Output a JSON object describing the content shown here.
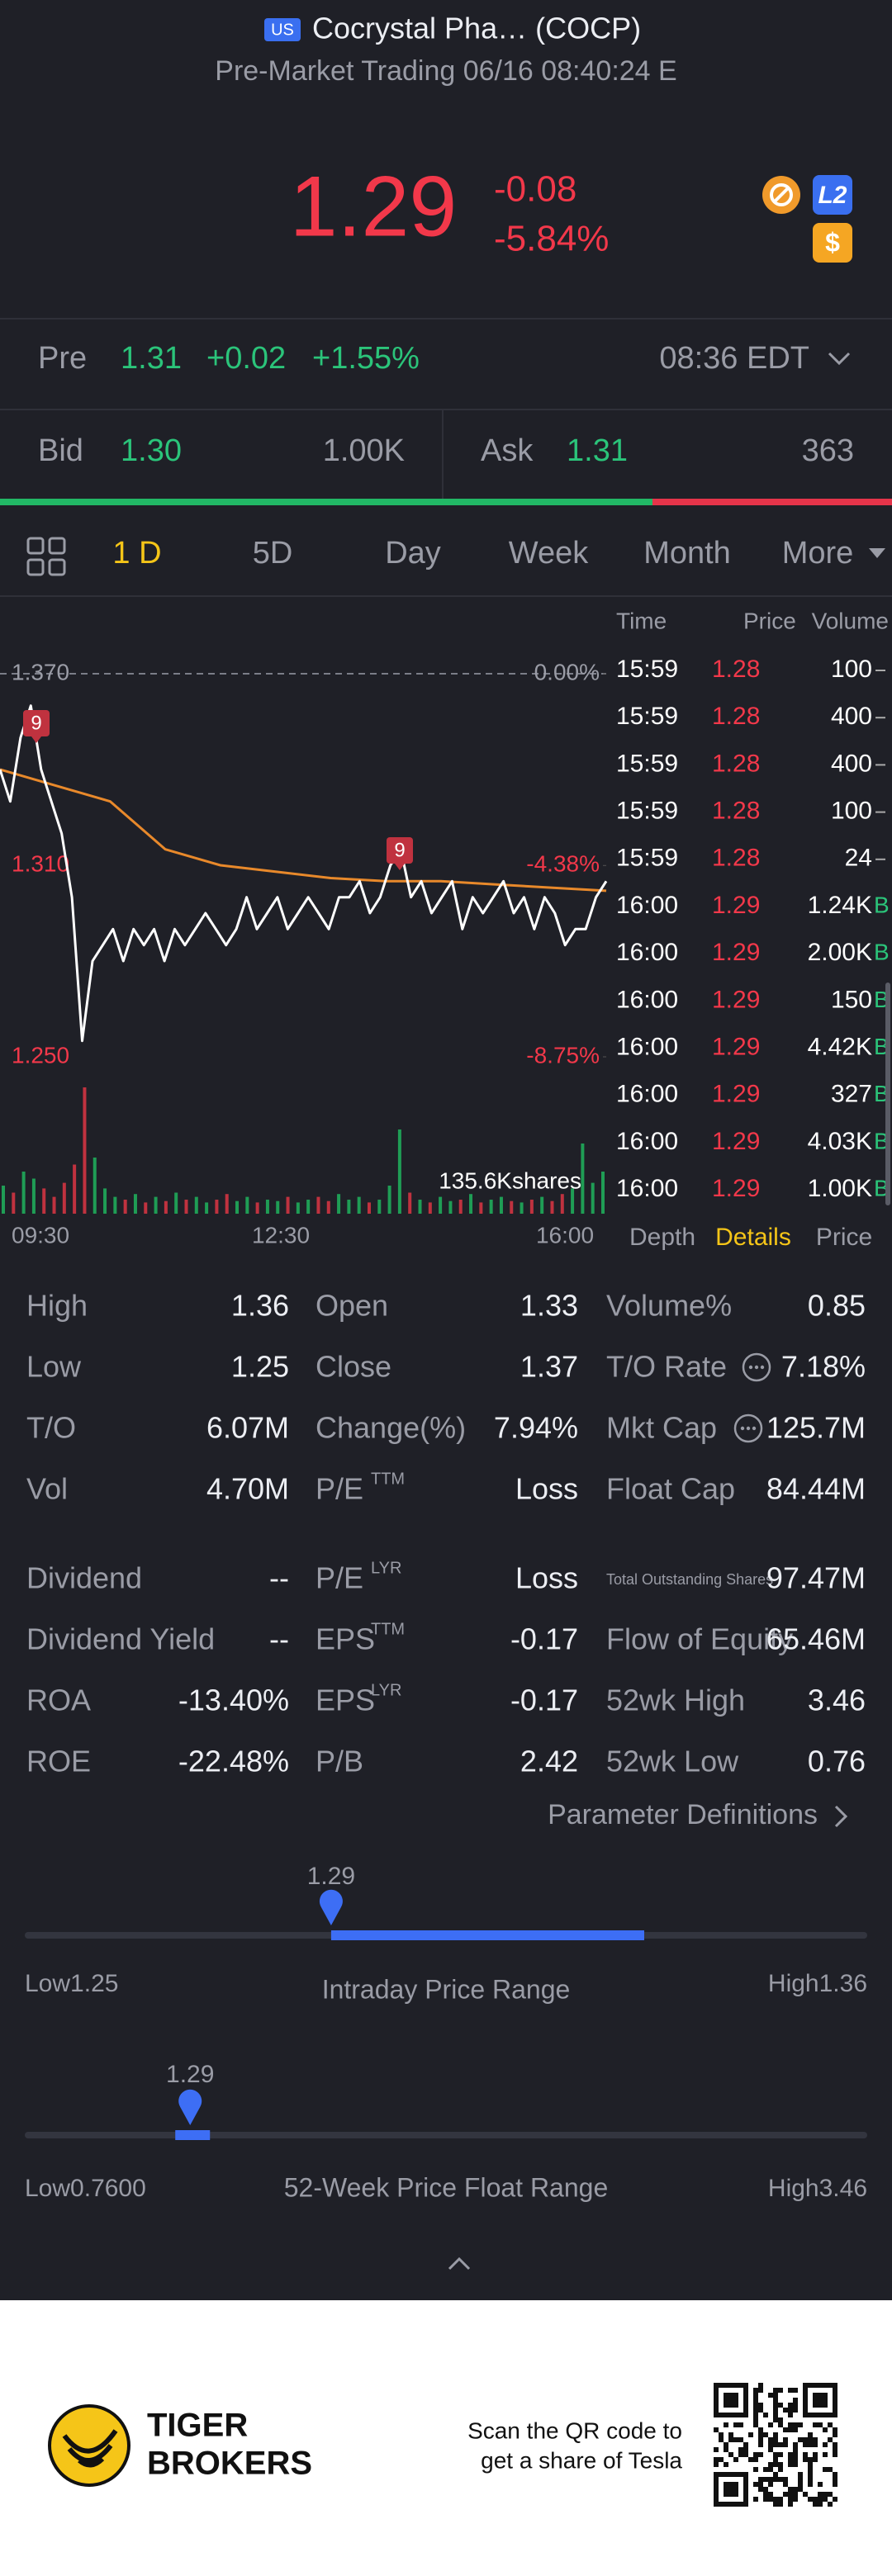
{
  "header": {
    "flag": "US",
    "name": "Cocrystal Pha… (COCP)",
    "subtitle": "Pre-Market Trading 06/16 08:40:24 E",
    "icons": [
      "L2",
      "$"
    ]
  },
  "quote": {
    "price": "1.29",
    "change": "-0.08",
    "change_pct": "-5.84%"
  },
  "pre": {
    "label": "Pre",
    "price": "1.31",
    "change": "+0.02",
    "change_pct": "+1.55%",
    "time": "08:36 EDT"
  },
  "bid": {
    "label": "Bid",
    "price": "1.30",
    "size": "1.00K"
  },
  "ask": {
    "label": "Ask",
    "price": "1.31",
    "size": "363"
  },
  "tabs": [
    "1 D",
    "5D",
    "Day",
    "Week",
    "Month",
    "More"
  ],
  "chart": {
    "type": "line",
    "ylim": [
      1.25,
      1.37
    ],
    "yticks": [
      {
        "value": 1.37,
        "label": "1.370"
      },
      {
        "value": 1.31,
        "label": "1.310"
      },
      {
        "value": 1.25,
        "label": "1.250"
      }
    ],
    "y2lim": [
      -8.75,
      0
    ],
    "y2ticks": [
      {
        "value": 0,
        "label": "0.00%"
      },
      {
        "value": -4.38,
        "label": "-4.38%"
      },
      {
        "value": -8.75,
        "label": "-8.75%"
      }
    ],
    "xticks": [
      "09:30",
      "12:30",
      "16:00"
    ],
    "price": {
      "color": "#ffffff",
      "values": [
        1.34,
        1.33,
        1.35,
        1.36,
        1.34,
        1.33,
        1.32,
        1.3,
        1.255,
        1.28,
        1.285,
        1.29,
        1.28,
        1.29,
        1.285,
        1.29,
        1.28,
        1.29,
        1.285,
        1.29,
        1.295,
        1.29,
        1.285,
        1.29,
        1.3,
        1.29,
        1.295,
        1.3,
        1.29,
        1.295,
        1.3,
        1.295,
        1.29,
        1.3,
        1.3,
        1.305,
        1.295,
        1.3,
        1.31,
        1.315,
        1.3,
        1.305,
        1.295,
        1.3,
        1.305,
        1.29,
        1.3,
        1.295,
        1.3,
        1.305,
        1.295,
        1.3,
        1.29,
        1.3,
        1.295,
        1.285,
        1.29,
        1.29,
        1.3,
        1.305
      ]
    },
    "average": {
      "color": "#e8892b",
      "values": [
        1.34,
        1.335,
        1.33,
        1.315,
        1.31,
        1.308,
        1.306,
        1.305,
        1.305,
        1.304,
        1.303,
        1.302
      ]
    },
    "volume": {
      "up_color": "#1f9d55",
      "down_color": "#c0323f",
      "ylim": [
        0,
        100
      ],
      "values": [
        20,
        15,
        30,
        25,
        18,
        12,
        22,
        35,
        90,
        40,
        18,
        12,
        10,
        14,
        8,
        12,
        9,
        15,
        10,
        12,
        8,
        10,
        14,
        9,
        12,
        8,
        10,
        9,
        12,
        8,
        10,
        12,
        9,
        14,
        10,
        12,
        8,
        10,
        20,
        60,
        15,
        10,
        8,
        12,
        9,
        10,
        14,
        8,
        10,
        12,
        9,
        8,
        10,
        12,
        9,
        14,
        18,
        50,
        22,
        30
      ]
    },
    "volume_label": "135.6Kshares",
    "markers": [
      9,
      9
    ]
  },
  "trades": {
    "headers": [
      "Time",
      "Price",
      "Volume"
    ],
    "rows": [
      {
        "time": "15:59",
        "price": "1.28",
        "volume": "100"
      },
      {
        "time": "15:59",
        "price": "1.28",
        "volume": "400"
      },
      {
        "time": "15:59",
        "price": "1.28",
        "volume": "400"
      },
      {
        "time": "15:59",
        "price": "1.28",
        "volume": "100"
      },
      {
        "time": "15:59",
        "price": "1.28",
        "volume": "24"
      },
      {
        "time": "16:00",
        "price": "1.29",
        "volume": "1.24K",
        "side": "B"
      },
      {
        "time": "16:00",
        "price": "1.29",
        "volume": "2.00K",
        "side": "B"
      },
      {
        "time": "16:00",
        "price": "1.29",
        "volume": "150",
        "side": "B"
      },
      {
        "time": "16:00",
        "price": "1.29",
        "volume": "4.42K",
        "side": "B"
      },
      {
        "time": "16:00",
        "price": "1.29",
        "volume": "327",
        "side": "B"
      },
      {
        "time": "16:00",
        "price": "1.29",
        "volume": "4.03K",
        "side": "B"
      },
      {
        "time": "16:00",
        "price": "1.29",
        "volume": "1.00K",
        "side": "B"
      }
    ],
    "tabs": [
      "Depth",
      "Details",
      "Price"
    ]
  },
  "stats": [
    [
      {
        "label": "High",
        "value": "1.36"
      },
      {
        "label": "Open",
        "value": "1.33"
      },
      {
        "label": "Volume%",
        "value": "0.85"
      }
    ],
    [
      {
        "label": "Low",
        "value": "1.25"
      },
      {
        "label": "Close",
        "value": "1.37"
      },
      {
        "label": "T/O Rate",
        "value": "7.18%"
      }
    ],
    [
      {
        "label": "T/O",
        "value": "6.07M"
      },
      {
        "label": "Change(%)",
        "value": "7.94%"
      },
      {
        "label": "Mkt Cap",
        "value": "125.7M"
      }
    ],
    [
      {
        "label": "Vol",
        "value": "4.70M"
      },
      {
        "label": "P/E",
        "sup": "TTM",
        "value": "Loss"
      },
      {
        "label": "Float Cap",
        "value": "84.44M"
      }
    ],
    [
      {
        "label": "Dividend",
        "value": "--"
      },
      {
        "label": "P/E",
        "sup": "LYR",
        "value": "Loss"
      },
      {
        "label": "Total Outstanding Shares",
        "value": "97.47M"
      }
    ],
    [
      {
        "label": "Dividend Yield",
        "value": "--"
      },
      {
        "label": "EPS",
        "sup": "TTM",
        "value": "-0.17"
      },
      {
        "label": "Flow of Equity",
        "value": "65.46M"
      }
    ],
    [
      {
        "label": "ROA",
        "value": "-13.40%"
      },
      {
        "label": "EPS",
        "sup": "LYR",
        "value": "-0.17"
      },
      {
        "label": "52wk High",
        "value": "3.46"
      }
    ],
    [
      {
        "label": "ROE",
        "value": "-22.48%"
      },
      {
        "label": "P/B",
        "value": "2.42"
      },
      {
        "label": "52wk Low",
        "value": "0.76"
      }
    ]
  ],
  "parameter_link": "Parameter Definitions",
  "ranges": [
    {
      "title": "Intraday Price Range",
      "current": 1.29,
      "low_label": "Low",
      "low": 1.25,
      "high_label": "High",
      "high": 1.36
    },
    {
      "title": "52-Week Price Float Range",
      "current": 1.29,
      "low_label": "Low",
      "low": {
        "value": 0.76,
        "label": "0.7600"
      },
      "high_label": "High",
      "high": 3.46
    }
  ],
  "footer": {
    "brand": [
      "TIGER",
      "BROKERS"
    ],
    "scan": [
      "Scan the QR code to",
      "get a share of Tesla"
    ]
  }
}
